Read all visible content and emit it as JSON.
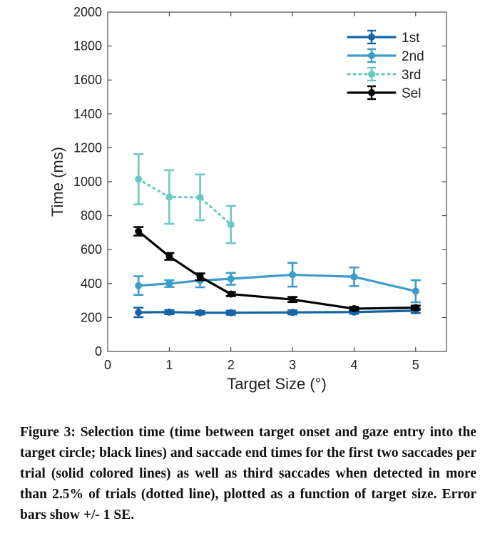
{
  "chart_data": {
    "type": "line",
    "xlabel": "Target Size (°)",
    "ylabel": "Time (ms)",
    "xlim": [
      0,
      5.5
    ],
    "ylim": [
      0,
      2000
    ],
    "x_ticks": [
      0,
      1,
      2,
      3,
      4,
      5
    ],
    "y_ticks": [
      0,
      200,
      400,
      600,
      800,
      1000,
      1200,
      1400,
      1600,
      1800,
      2000
    ],
    "grid": false,
    "legend_position": "top-right",
    "error_bars": "+/- 1 SE",
    "series": [
      {
        "name": "1st",
        "color": "#1464A8",
        "style": "solid",
        "x": [
          0.5,
          1,
          1.5,
          2,
          3,
          4,
          5
        ],
        "y": [
          230,
          232,
          228,
          228,
          230,
          232,
          240
        ],
        "err": [
          28,
          12,
          10,
          12,
          12,
          10,
          14
        ]
      },
      {
        "name": "2nd",
        "color": "#3E9CCB",
        "style": "solid",
        "x": [
          0.5,
          1,
          1.5,
          2,
          3,
          4,
          5
        ],
        "y": [
          388,
          400,
          418,
          428,
          452,
          440,
          355
        ],
        "err": [
          55,
          20,
          40,
          35,
          70,
          55,
          65
        ]
      },
      {
        "name": "3rd",
        "color": "#6DC8C4",
        "style": "dotted",
        "x": [
          0.5,
          1,
          1.5,
          2
        ],
        "y": [
          1015,
          910,
          908,
          748
        ],
        "err": [
          148,
          158,
          135,
          110
        ]
      },
      {
        "name": "Sel",
        "color": "#000000",
        "style": "solid",
        "x": [
          0.5,
          1,
          1.5,
          2,
          3,
          4,
          5
        ],
        "y": [
          708,
          560,
          440,
          338,
          306,
          252,
          258
        ],
        "err": [
          25,
          20,
          20,
          12,
          15,
          10,
          12
        ]
      }
    ]
  },
  "caption": {
    "text": "Figure 3: Selection time (time between target onset and gaze entry into the target circle; black lines) and saccade end times for the first two saccades per trial (solid colored lines) as well as third saccades when detected in more than 2.5% of trials (dotted line), plotted as a function of target size. Error bars show +/- 1 SE."
  }
}
